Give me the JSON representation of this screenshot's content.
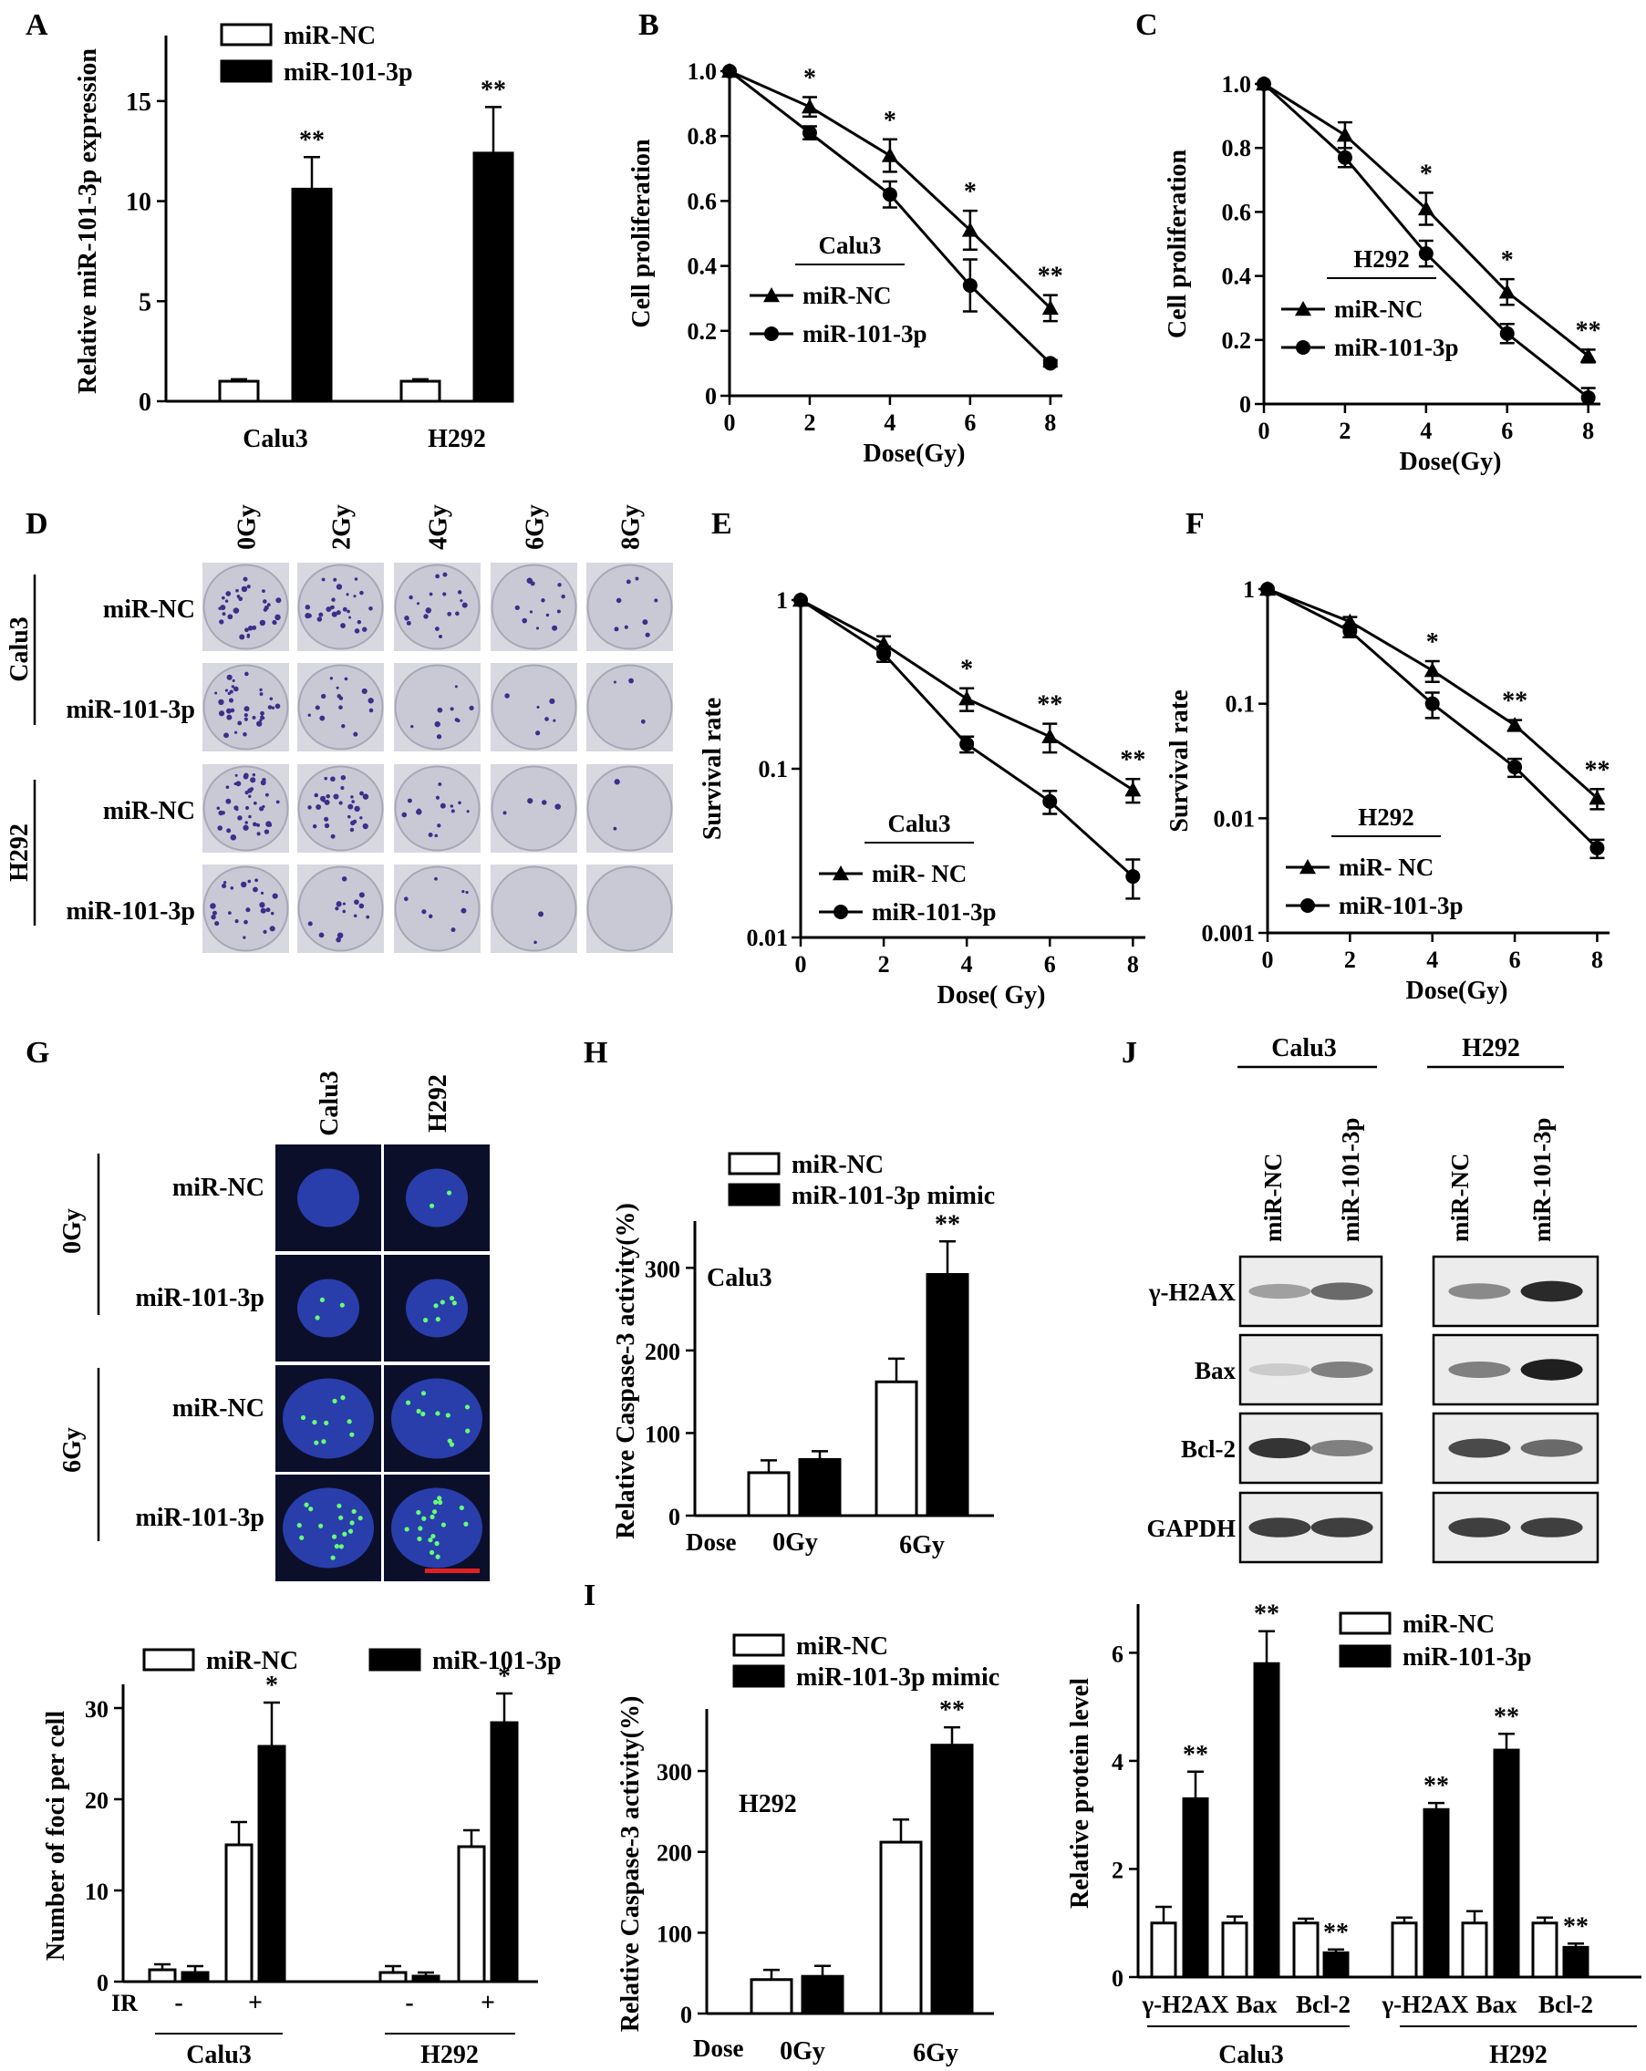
{
  "panel_letters": [
    "A",
    "B",
    "C",
    "D",
    "E",
    "F",
    "G",
    "H",
    "J",
    "I"
  ],
  "chart_data": [
    {
      "panel": "A",
      "type": "bar",
      "ylabel": "Relative miR-101-3p expression",
      "categories": [
        "Calu3",
        "H292"
      ],
      "ylim": [
        0,
        18
      ],
      "yticks": [
        0,
        5,
        10,
        15
      ],
      "series": [
        {
          "name": "miR-NC",
          "values": [
            1.0,
            1.0
          ],
          "errors": [
            0.1,
            0.1
          ],
          "color": "#ffffff"
        },
        {
          "name": "miR-101-3p",
          "values": [
            10.6,
            12.4
          ],
          "errors": [
            1.6,
            2.3
          ],
          "color": "#000000"
        }
      ],
      "significance": [
        [
          "",
          "**"
        ],
        [
          "",
          "**"
        ]
      ]
    },
    {
      "panel": "B",
      "type": "line",
      "legend_title": "Calu3",
      "xlabel": "Dose(Gy)",
      "ylabel": "Cell proliferation",
      "x": [
        0,
        2,
        4,
        6,
        8
      ],
      "xlim": [
        0,
        8.3
      ],
      "ylim": [
        0,
        1.0
      ],
      "yticks": [
        "0",
        "0.2",
        "0.4",
        "0.6",
        "0.8",
        "1.0"
      ],
      "xticks": [
        0,
        2,
        4,
        6,
        8
      ],
      "series": [
        {
          "name": "miR-NC",
          "marker": "triangle",
          "values": [
            1.0,
            0.89,
            0.74,
            0.51,
            0.27
          ],
          "errors": [
            0,
            0.03,
            0.05,
            0.06,
            0.04
          ]
        },
        {
          "name": "miR-101-3p",
          "marker": "circle",
          "values": [
            1.0,
            0.81,
            0.62,
            0.34,
            0.1
          ],
          "errors": [
            0,
            0.02,
            0.04,
            0.08,
            0.01
          ]
        }
      ],
      "significance": [
        "",
        "*",
        "*",
        "*",
        "**"
      ]
    },
    {
      "panel": "C",
      "type": "line",
      "legend_title": "H292",
      "xlabel": "Dose(Gy)",
      "ylabel": "Cell proliferation",
      "x": [
        0,
        2,
        4,
        6,
        8
      ],
      "xlim": [
        0,
        8.3
      ],
      "ylim": [
        0,
        1.0
      ],
      "yticks": [
        "0",
        "0.2",
        "0.4",
        "0.6",
        "0.8",
        "1.0"
      ],
      "xticks": [
        0,
        2,
        4,
        6,
        8
      ],
      "series": [
        {
          "name": "miR-NC",
          "marker": "triangle",
          "values": [
            1.0,
            0.84,
            0.61,
            0.35,
            0.15
          ],
          "errors": [
            0,
            0.04,
            0.05,
            0.04,
            0.02
          ]
        },
        {
          "name": "miR-101-3p",
          "marker": "circle",
          "values": [
            1.0,
            0.77,
            0.47,
            0.22,
            0.02
          ],
          "errors": [
            0,
            0.03,
            0.04,
            0.03,
            0.03
          ]
        }
      ],
      "significance": [
        "",
        "",
        "*",
        "*",
        "**"
      ]
    },
    {
      "panel": "E",
      "type": "line",
      "yscale": "log",
      "legend_title": "Calu3",
      "xlabel": "Dose( Gy)",
      "ylabel": "Survival  rate",
      "x": [
        0,
        2,
        4,
        6,
        8
      ],
      "xlim": [
        0,
        8.3
      ],
      "ylim": [
        0.01,
        1
      ],
      "yticks": [
        "0.01",
        "0.1",
        "1"
      ],
      "xticks": [
        0,
        2,
        4,
        6,
        8
      ],
      "series": [
        {
          "name": "miR- NC",
          "marker": "triangle",
          "values": [
            1.0,
            0.55,
            0.26,
            0.155,
            0.075
          ],
          "errors": [
            0,
            0.06,
            0.04,
            0.03,
            0.012
          ]
        },
        {
          "name": "miR-101-3p",
          "marker": "circle",
          "values": [
            1.0,
            0.48,
            0.14,
            0.064,
            0.023
          ],
          "errors": [
            0,
            0.05,
            0.015,
            0.01,
            0.006
          ]
        }
      ],
      "significance": [
        "",
        "",
        "*",
        "**",
        "**"
      ]
    },
    {
      "panel": "F",
      "type": "line",
      "yscale": "log",
      "legend_title": "H292",
      "xlabel": "Dose(Gy)",
      "ylabel": "Survival  rate",
      "x": [
        0,
        2,
        4,
        6,
        8
      ],
      "xlim": [
        0,
        8.3
      ],
      "ylim": [
        0.001,
        1
      ],
      "yticks": [
        "0.001",
        "0.01",
        "0.1",
        "1"
      ],
      "xticks": [
        0,
        2,
        4,
        6,
        8
      ],
      "series": [
        {
          "name": "miR- NC",
          "marker": "triangle",
          "values": [
            1.0,
            0.52,
            0.195,
            0.065,
            0.015
          ],
          "errors": [
            0,
            0.05,
            0.04,
            0.007,
            0.003
          ]
        },
        {
          "name": "miR-101-3p",
          "marker": "circle",
          "values": [
            1.0,
            0.43,
            0.1,
            0.028,
            0.0055
          ],
          "errors": [
            0,
            0.05,
            0.025,
            0.005,
            0.001
          ]
        }
      ],
      "significance": [
        "",
        "",
        "*",
        "**",
        "**"
      ]
    },
    {
      "panel": "G",
      "type": "bar",
      "ylabel": "Number of  foci per cell",
      "categories": [
        "Calu3 -",
        "Calu3 +",
        "H292 -",
        "H292 +"
      ],
      "ir_row_label": "IR",
      "ir_values": [
        "-",
        "+",
        "-",
        "+"
      ],
      "group_labels": [
        "Calu3",
        "H292"
      ],
      "ylim": [
        0,
        32
      ],
      "yticks": [
        0,
        10,
        20,
        30
      ],
      "series": [
        {
          "name": "miR-NC",
          "values": [
            1.3,
            15.0,
            1.0,
            14.8
          ],
          "errors": [
            0.6,
            2.5,
            0.7,
            1.8
          ],
          "color": "#ffffff"
        },
        {
          "name": "miR-101-3p",
          "values": [
            1.0,
            25.8,
            0.6,
            28.4
          ],
          "errors": [
            0.7,
            4.8,
            0.4,
            3.2
          ],
          "color": "#000000"
        }
      ],
      "significance": [
        [
          "",
          ""
        ],
        [
          "",
          "*"
        ],
        [
          "",
          ""
        ],
        [
          "",
          "*"
        ]
      ]
    },
    {
      "panel": "H",
      "type": "bar",
      "inner_label": "Calu3",
      "ylabel": "Relative Caspase-3 activity(%)",
      "dose_label": "Dose",
      "categories": [
        "0Gy",
        "6Gy"
      ],
      "ylim": [
        0,
        350
      ],
      "yticks": [
        0,
        100,
        200,
        300
      ],
      "series": [
        {
          "name": "miR-NC",
          "values": [
            52,
            162
          ],
          "errors": [
            15,
            28
          ],
          "color": "#ffffff"
        },
        {
          "name": "miR-101-3p mimic",
          "values": [
            68,
            292
          ],
          "errors": [
            10,
            40
          ],
          "color": "#000000"
        }
      ],
      "significance": [
        [
          "",
          ""
        ],
        [
          "",
          "**"
        ]
      ]
    },
    {
      "panel": "I",
      "type": "bar",
      "inner_label": "H292",
      "ylabel": "Relative Caspase-3 activity(%)",
      "dose_label": "Dose",
      "categories": [
        "0Gy",
        "6Gy"
      ],
      "ylim": [
        0,
        370
      ],
      "yticks": [
        0,
        100,
        200,
        300
      ],
      "series": [
        {
          "name": "miR-NC",
          "values": [
            42,
            212
          ],
          "errors": [
            12,
            28
          ],
          "color": "#ffffff"
        },
        {
          "name": "miR-101-3p mimic",
          "values": [
            46,
            332
          ],
          "errors": [
            13,
            22
          ],
          "color": "#000000"
        }
      ],
      "significance": [
        [
          "",
          ""
        ],
        [
          "",
          "**"
        ]
      ]
    },
    {
      "panel": "J",
      "type": "bar",
      "ylabel": "Relative  protein level",
      "categories": [
        "γ-H2AX",
        "Bax",
        "Bcl-2",
        "γ-H2AX",
        "Bax",
        "Bcl-2"
      ],
      "group_labels": [
        "Calu3",
        "H292"
      ],
      "ylim": [
        0,
        6.8
      ],
      "yticks": [
        0,
        2,
        4,
        6
      ],
      "series": [
        {
          "name": "miR-NC",
          "values": [
            1.0,
            1.0,
            1.0,
            1.0,
            1.0,
            1.0
          ],
          "errors": [
            0.3,
            0.12,
            0.08,
            0.1,
            0.22,
            0.1
          ],
          "color": "#ffffff"
        },
        {
          "name": "miR-101-3p",
          "values": [
            3.3,
            5.8,
            0.45,
            3.1,
            4.2,
            0.55
          ],
          "errors": [
            0.5,
            0.6,
            0.06,
            0.12,
            0.3,
            0.07
          ],
          "color": "#000000"
        }
      ],
      "significance": [
        [
          "",
          "**"
        ],
        [
          "",
          "**"
        ],
        [
          "",
          "**"
        ],
        [
          "",
          "**"
        ],
        [
          "",
          "**"
        ],
        [
          "",
          "**"
        ]
      ]
    }
  ],
  "panel_d": {
    "columns": [
      "0Gy",
      "2Gy",
      "4Gy",
      "6Gy",
      "8Gy"
    ],
    "groups": [
      "Calu3",
      "H292"
    ],
    "rows": [
      "miR-NC",
      "miR-101-3p",
      "miR-NC",
      "miR-101-3p"
    ],
    "colony_density": [
      [
        32,
        26,
        18,
        12,
        8
      ],
      [
        34,
        16,
        9,
        6,
        3
      ],
      [
        40,
        30,
        14,
        4,
        2
      ],
      [
        26,
        14,
        8,
        2,
        0
      ]
    ],
    "dish_color": "#c9c9d6",
    "colony_color": "#3c2f8a"
  },
  "panel_g_images": {
    "columns": [
      "Calu3",
      "H292"
    ],
    "groups": [
      "0Gy",
      "6Gy"
    ],
    "rows": [
      "miR-NC",
      "miR-101-3p",
      "miR-NC",
      "miR-101-3p"
    ],
    "foci": [
      [
        0,
        2
      ],
      [
        3,
        6
      ],
      [
        9,
        10
      ],
      [
        16,
        18
      ]
    ],
    "nucleus_color": "#2c44b8",
    "background_color": "#0b0f2a",
    "foci_color": "#66ff77",
    "scale_bar_color": "#e02020"
  },
  "panel_j_blot": {
    "groups": [
      "Calu3",
      "H292"
    ],
    "lanes": [
      "miR-NC",
      "miR-101-3p",
      "miR-NC",
      "miR-101-3p"
    ],
    "rows": [
      "γ-H2AX",
      "Bax",
      "Bcl-2",
      "GAPDH"
    ],
    "band_intensity": [
      [
        0.35,
        0.6,
        0.45,
        0.9
      ],
      [
        0.15,
        0.5,
        0.5,
        0.95
      ],
      [
        0.85,
        0.5,
        0.75,
        0.6
      ],
      [
        0.8,
        0.8,
        0.8,
        0.8
      ]
    ]
  }
}
